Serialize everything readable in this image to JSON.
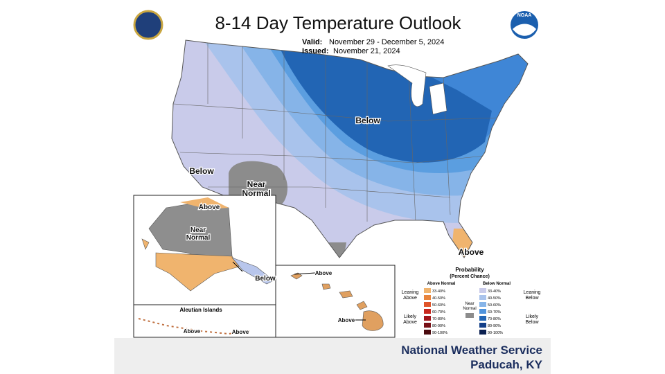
{
  "header": {
    "title": "8-14 Day Temperature Outlook",
    "valid_label": "Valid:",
    "valid": "November 29 - December 5, 2024",
    "issued_label": "Issued:",
    "issued": "November 21, 2024",
    "logo": "NOAA"
  },
  "conus_labels": [
    {
      "lines": [
        "Below"
      ]
    },
    {
      "lines": [
        "Below"
      ]
    },
    {
      "lines": [
        "Near",
        "Normal"
      ]
    },
    {
      "lines": [
        "Above"
      ]
    }
  ],
  "alaska_labels": [
    {
      "lines": [
        "Above"
      ]
    },
    {
      "lines": [
        "Near",
        "Normal"
      ]
    },
    {
      "lines": [
        "Below"
      ]
    }
  ],
  "aleutian": {
    "title": "Aleutian Islands",
    "labels": [
      "Above",
      "Above"
    ]
  },
  "hawaii_labels": [
    "Above",
    "Above"
  ],
  "legend": {
    "title": "Probability",
    "subtitle": "(Percent Chance)",
    "above_header": "Above Normal",
    "below_header": "Below Normal",
    "leaning_above": [
      "Leaning",
      "Above"
    ],
    "likely_above": [
      "Likely",
      "Above"
    ],
    "near": [
      "Near",
      "Normal"
    ],
    "leaning_below": [
      "Leaning",
      "Below"
    ],
    "likely_below": [
      "Likely",
      "Below"
    ],
    "bins": [
      "33-40%",
      "40-50%",
      "50-60%",
      "60-70%",
      "70-80%",
      "80-90%",
      "90-100%"
    ]
  },
  "footer": {
    "line1": "National Weather Service",
    "line2": "Paducah, KY"
  }
}
